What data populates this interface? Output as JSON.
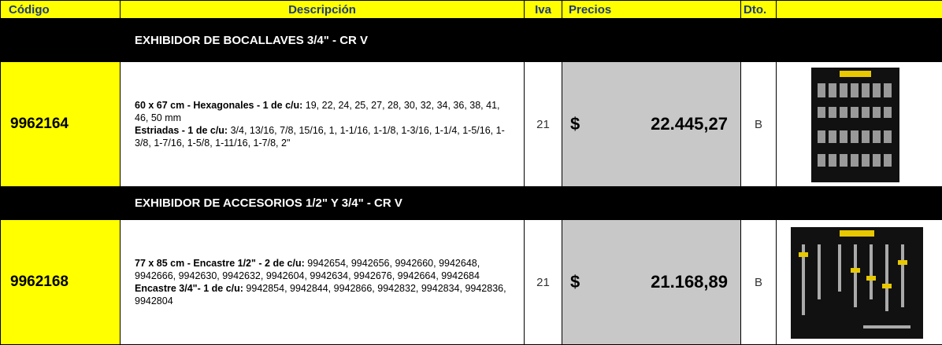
{
  "header": {
    "code": "Código",
    "description": "Descripción",
    "iva": "Iva",
    "price": "Precios",
    "discount": "Dto."
  },
  "sections": [
    {
      "title": "EXHIBIDOR DE BOCALLAVES  3/4\" - CR V",
      "item": {
        "code": "9962164",
        "description": [
          {
            "label": "60 x 67 cm - Hexagonales - 1 de c/u:",
            "text": " 19, 22, 24, 25, 27, 28, 30, 32, 34, 36, 38, 41, 46, 50 mm"
          },
          {
            "label": "Estriadas - 1 de c/u:",
            "text": " 3/4, 13/16, 7/8, 15/16, 1, 1-1/16, 1-1/8, 1-3/16, 1-1/4, 1-5/16, 1-3/8, 1-7/16, 1-5/8, 1-11/16, 1-7/8, 2\""
          }
        ],
        "iva": "21",
        "currency": "$",
        "price": "22.445,27",
        "discount": "B"
      }
    },
    {
      "title": "EXHIBIDOR DE ACCESORIOS 1/2\"  Y  3/4\" - CR V",
      "item": {
        "code": "9962168",
        "description": [
          {
            "label": "77 x 85 cm - Encastre 1/2\" - 2 de c/u:",
            "text": " 9942654, 9942656, 9942660, 9942648, 9942666, 9942630, 9942632, 9942604, 9942634, 9942676, 9942664, 9942684"
          },
          {
            "label": "Encastre 3/4\"- 1 de c/u:",
            "text": " 9942854, 9942844, 9942866, 9942832, 9942834, 9942836, 9942804"
          }
        ],
        "iva": "21",
        "currency": "$",
        "price": "21.168,89",
        "discount": "B"
      }
    }
  ]
}
